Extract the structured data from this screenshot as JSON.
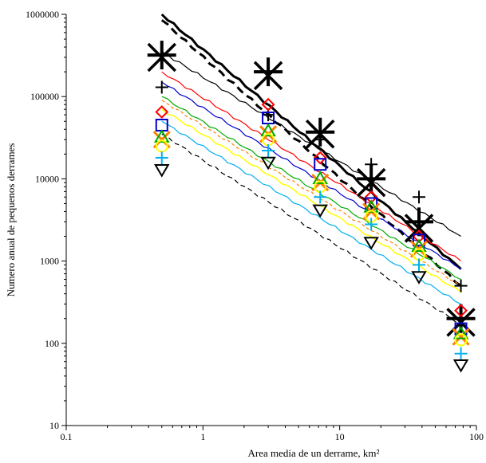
{
  "chart_data": {
    "type": "scatter",
    "title": "",
    "xlabel": "Area media de un derrame, km²",
    "ylabel": "Numero anual de pequenos derrames",
    "x_scale": "log",
    "y_scale": "log",
    "xlim": [
      0.1,
      100
    ],
    "ylim": [
      10,
      1000000
    ],
    "x_ticks": [
      "0.1",
      "1",
      "10",
      "100"
    ],
    "y_ticks": [
      "10",
      "100",
      "1000",
      "10000",
      "100000",
      "1000000"
    ],
    "grid": false,
    "legend": "none",
    "x": [
      0.5,
      3,
      7.2,
      17,
      38,
      77
    ],
    "lines": [
      {
        "x": [
          0.5,
          77
        ],
        "y": [
          1000000,
          800
        ],
        "color": "#000000",
        "width": 3,
        "dash": ""
      },
      {
        "x": [
          0.5,
          77
        ],
        "y": [
          850000,
          500
        ],
        "color": "#000000",
        "width": 3,
        "dash": "10,6"
      },
      {
        "x": [
          0.5,
          77
        ],
        "y": [
          350000,
          2000
        ],
        "color": "#000000",
        "width": 1.2,
        "dash": ""
      },
      {
        "x": [
          0.5,
          77
        ],
        "y": [
          200000,
          1000
        ],
        "color": "#ff0000",
        "width": 1.2,
        "dash": ""
      },
      {
        "x": [
          0.5,
          77
        ],
        "y": [
          150000,
          800
        ],
        "color": "#0000cc",
        "width": 1.2,
        "dash": ""
      },
      {
        "x": [
          0.5,
          77
        ],
        "y": [
          100000,
          600
        ],
        "color": "#00aa00",
        "width": 1.2,
        "dash": ""
      },
      {
        "x": [
          0.5,
          77
        ],
        "y": [
          90000,
          500
        ],
        "color": "#ff8000",
        "width": 1.2,
        "dash": "4,3"
      },
      {
        "x": [
          0.5,
          77
        ],
        "y": [
          70000,
          420
        ],
        "color": "#ffff00",
        "width": 1.5,
        "dash": ""
      },
      {
        "x": [
          0.5,
          77
        ],
        "y": [
          50000,
          300
        ],
        "color": "#00b0f0",
        "width": 1.2,
        "dash": ""
      },
      {
        "x": [
          0.5,
          77
        ],
        "y": [
          35000,
          170
        ],
        "color": "#000000",
        "width": 1.2,
        "dash": "6,4"
      }
    ],
    "series": [
      {
        "marker": "big-star",
        "color": "#000000",
        "values": [
          300000,
          180000,
          35000,
          9000,
          2500,
          180
        ]
      },
      {
        "marker": "big-plus",
        "color": "#000000",
        "values": [
          320000,
          200000,
          37000,
          10000,
          3000,
          200
        ]
      },
      {
        "marker": "plus",
        "color": "#000000",
        "values": [
          130000,
          60000,
          30000,
          15000,
          6000,
          500
        ]
      },
      {
        "marker": "diamond",
        "color": "#ff0000",
        "values": [
          65000,
          80000,
          18000,
          6000,
          2000,
          250
        ]
      },
      {
        "marker": "square",
        "color": "#0000cc",
        "values": [
          45000,
          55000,
          15000,
          5000,
          1800,
          150
        ]
      },
      {
        "marker": "x",
        "color": "#ff8000",
        "values": [
          30000,
          35000,
          9000,
          4000,
          1400,
          120
        ]
      },
      {
        "marker": "triangle",
        "color": "#00aa00",
        "values": [
          32000,
          38000,
          10000,
          4500,
          1500,
          130
        ]
      },
      {
        "marker": "circle",
        "color": "#ffff00",
        "values": [
          25000,
          30000,
          8000,
          3500,
          1200,
          110
        ]
      },
      {
        "marker": "plus",
        "color": "#00b0f0",
        "values": [
          18000,
          22000,
          6000,
          2800,
          900,
          75
        ]
      },
      {
        "marker": "triangle-down",
        "color": "#000000",
        "values": [
          13000,
          16000,
          4200,
          1700,
          650,
          55
        ]
      }
    ]
  }
}
